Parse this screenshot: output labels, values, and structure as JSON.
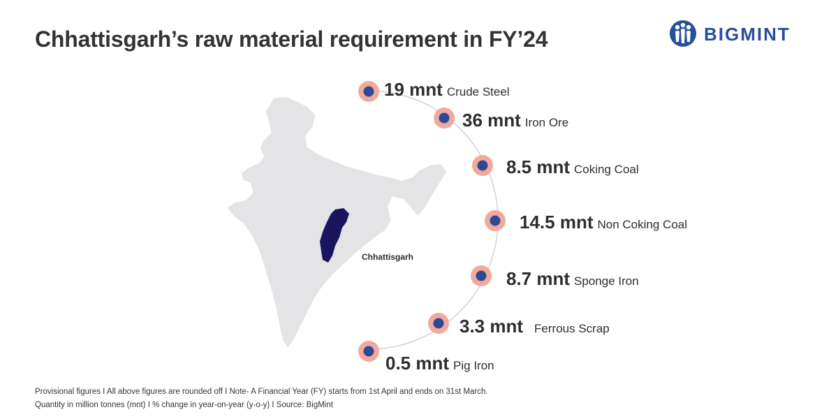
{
  "title": "Chhattisgarh’s raw material requirement in FY’24",
  "brand": {
    "name": "BIGMINT",
    "color": "#264f9c"
  },
  "map": {
    "highlight_label": "Chhattisgarh",
    "country_color": "#e4e4e7",
    "highlight_color": "#1b1560"
  },
  "colors": {
    "marker_outer": "#f2a99b",
    "marker_inner": "#2e4a94",
    "arc": "#c9c9c9"
  },
  "items": [
    {
      "value": "19 mnt",
      "label": "Crude Steel"
    },
    {
      "value": "36 mnt",
      "label": "Iron Ore"
    },
    {
      "value": "8.5 mnt",
      "label": "Coking Coal"
    },
    {
      "value": "14.5 mnt",
      "label": "Non Coking Coal"
    },
    {
      "value": "8.7 mnt",
      "label": "Sponge Iron"
    },
    {
      "value": "3.3 mnt",
      "label": "Ferrous Scrap"
    },
    {
      "value": "0.5 mnt",
      "label": "Pig Iron"
    }
  ],
  "footer": {
    "line1": "Provisional figures  I  All above figures are rounded off  I  Note- A Financial Year (FY) starts from 1st April and ends on 31st March.",
    "line2": "Quantity in million tonnes (mnt)  I  % change in year-on-year (y-o-y)  I  Source: BigMint"
  }
}
